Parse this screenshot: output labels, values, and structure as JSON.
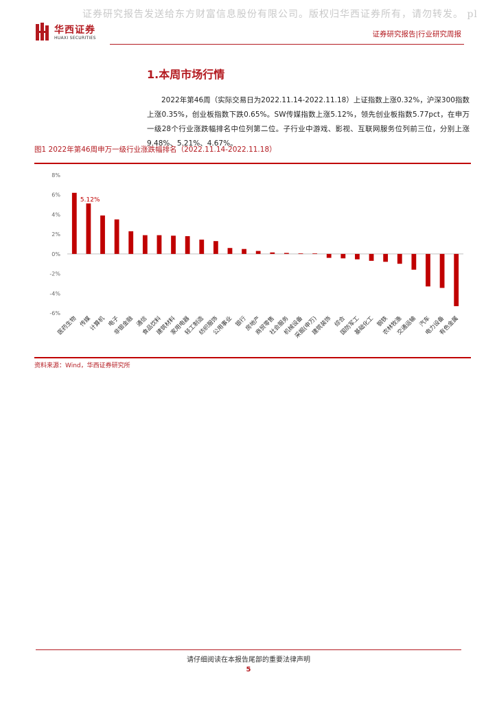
{
  "watermark": "证券研究报告发送给东方财富信息股份有限公司。版权归华西证券所有，请勿转发。 pl",
  "header": {
    "logo_cn": "华西证券",
    "logo_en": "HUAXI SECURITIES",
    "right": "证券研究报告|行业研究周报"
  },
  "section": {
    "title": "1.本周市场行情",
    "paragraph": "2022年第46周（实际交易日为2022.11.14-2022.11.18）上证指数上涨0.32%，沪深300指数上涨0.35%，创业板指数下跌0.65%。SW传媒指数上涨5.12%，领先创业板指数5.77pct，在申万一级28个行业涨跌幅排名中位列第二位。子行业中游戏、影视、互联网服务位列前三位，分别上涨9.48%、5.21%、4.67%。"
  },
  "figure": {
    "title": "图1 2022年第46周申万一级行业涨跌幅排名（2022.11.14-2022.11.18）",
    "source": "资料来源：Wind，华西证券研究所"
  },
  "chart_data": {
    "type": "bar",
    "categories": [
      "医药生物",
      "传媒",
      "计算机",
      "电子",
      "非银金融",
      "通信",
      "食品饮料",
      "建筑材料",
      "家用电器",
      "轻工制造",
      "纺织服饰",
      "公用事业",
      "银行",
      "房地产",
      "商贸零售",
      "社会服务",
      "机械设备",
      "采掘(申万)",
      "建筑装饰",
      "综合",
      "国防军工",
      "基础化工",
      "钢铁",
      "农林牧渔",
      "交通运输",
      "汽车",
      "电力设备",
      "有色金属"
    ],
    "values": [
      6.2,
      5.12,
      3.9,
      3.5,
      2.3,
      1.9,
      1.9,
      1.85,
      1.8,
      1.45,
      1.3,
      0.6,
      0.5,
      0.3,
      0.15,
      0.1,
      0.05,
      0.05,
      -0.4,
      -0.45,
      -0.55,
      -0.7,
      -0.8,
      -1.0,
      -1.6,
      -3.3,
      -3.45,
      -5.3
    ],
    "ylim": [
      -6,
      8
    ],
    "yticks": [
      "8%",
      "6%",
      "4%",
      "2%",
      "0%",
      "-2%",
      "-4%",
      "-6%"
    ],
    "bar_color": "#c00000",
    "annotation": {
      "index": 1,
      "text": "5.12%"
    },
    "grid": false,
    "legend": "none"
  },
  "footer": {
    "note": "请仔细阅读在本报告尾部的重要法律声明",
    "page": "5"
  }
}
